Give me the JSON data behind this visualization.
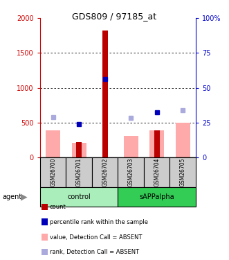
{
  "title": "GDS809 / 97185_at",
  "samples": [
    "GSM26700",
    "GSM26701",
    "GSM26702",
    "GSM26703",
    "GSM26704",
    "GSM26705"
  ],
  "red_bars": [
    0,
    220,
    1820,
    0,
    385,
    0
  ],
  "pink_bars": [
    390,
    210,
    0,
    310,
    385,
    500
  ],
  "blue_squares_left": [
    null,
    480,
    1130,
    null,
    650,
    null
  ],
  "lightblue_squares_left": [
    580,
    null,
    null,
    570,
    null,
    680
  ],
  "ylim_left": [
    0,
    2000
  ],
  "ylim_right": [
    0,
    100
  ],
  "left_yticks": [
    0,
    500,
    1000,
    1500,
    2000
  ],
  "right_yticks": [
    0,
    25,
    50,
    75,
    100
  ],
  "right_yticklabels": [
    "0",
    "25",
    "50",
    "75",
    "100%"
  ],
  "colors": {
    "red_bar": "#bb0000",
    "pink_bar": "#ffaaaa",
    "blue_square": "#0000bb",
    "lightblue_square": "#aaaadd",
    "control_bg": "#aaeebb",
    "sAPPalpha_bg": "#33cc55",
    "left_tick_color": "#cc0000",
    "right_tick_color": "#0000cc"
  },
  "legend_items": [
    {
      "label": "count",
      "color": "#bb0000"
    },
    {
      "label": "percentile rank within the sample",
      "color": "#0000bb"
    },
    {
      "label": "value, Detection Call = ABSENT",
      "color": "#ffaaaa"
    },
    {
      "label": "rank, Detection Call = ABSENT",
      "color": "#aaaadd"
    }
  ]
}
